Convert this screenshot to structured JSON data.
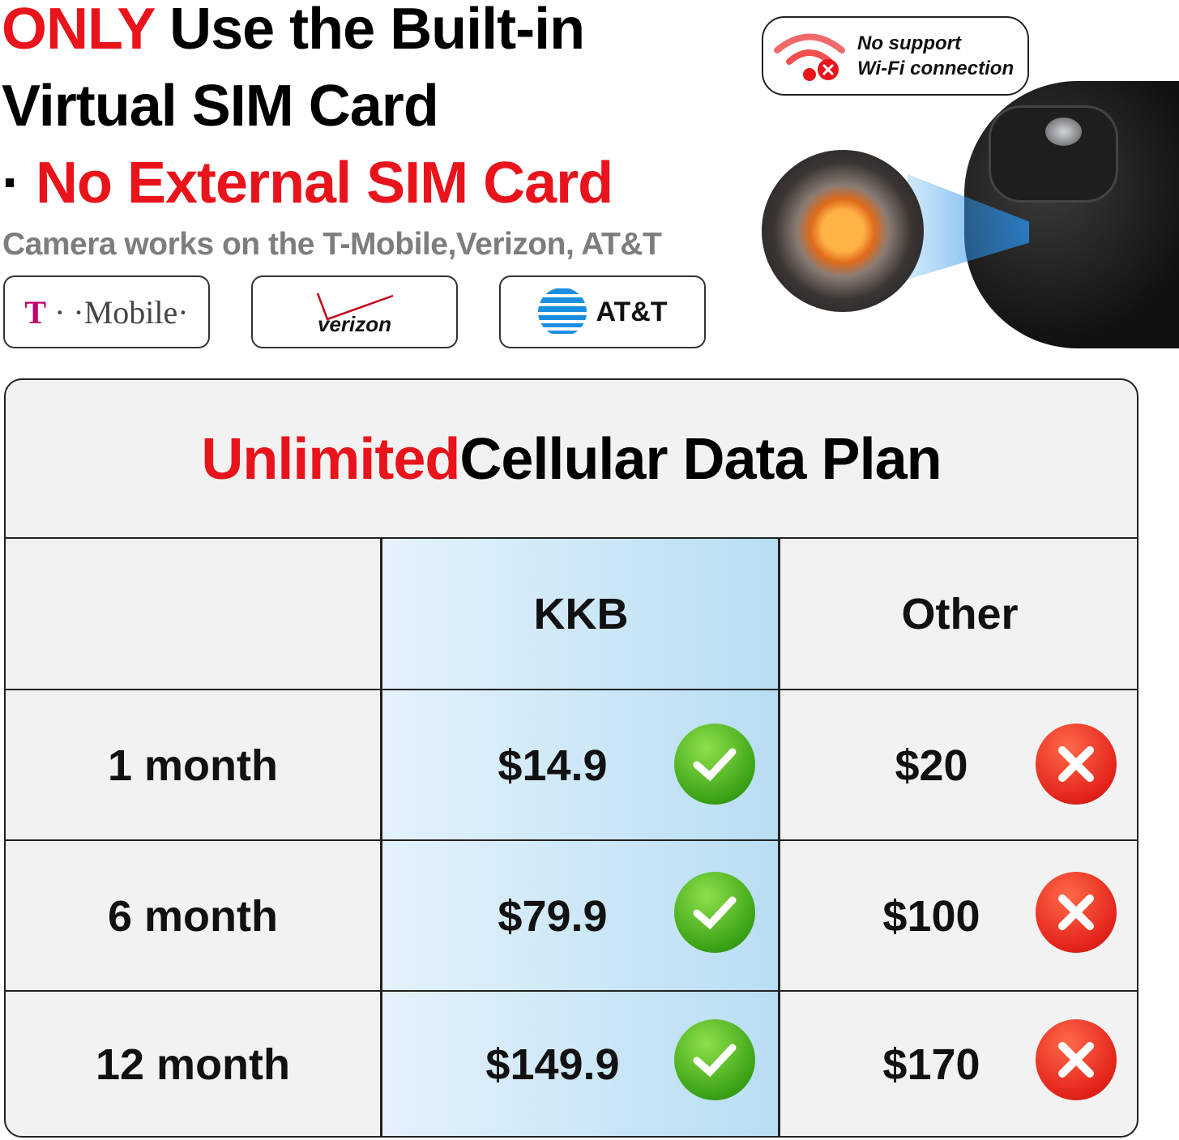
{
  "headline": {
    "line1_red": "ONLY",
    "line1_rest": " Use the Built-in",
    "line2": "Virtual SIM Card",
    "line3_dot": "·",
    "line3_red": " No External SIM Card"
  },
  "subtitle": "Camera works on the T-Mobile,Verizon, AT&T",
  "carriers": [
    {
      "name": "T-Mobile",
      "t": "T",
      "rest": " · ·Mobile·"
    },
    {
      "name": "verizon"
    },
    {
      "name": "AT&T"
    }
  ],
  "wifi_badge": {
    "icon": "wifi-off-icon",
    "line1": "No support",
    "line2": "Wi-Fi connection"
  },
  "table": {
    "title_red": "Unlimited",
    "title_rest": " Cellular Data Plan",
    "columns": [
      "",
      "KKB",
      "Other"
    ],
    "rows": [
      {
        "period": "1 month",
        "kkb": "$14.9",
        "other": "$20"
      },
      {
        "period": "6 month",
        "kkb": "$79.9",
        "other": "$100"
      },
      {
        "period": "12 month",
        "kkb": "$149.9",
        "other": "$170"
      }
    ]
  },
  "colors": {
    "accent_red": "#e8131b",
    "kkb_blue": "#b8def3",
    "check_green": "#3aa316",
    "cross_red": "#e3231a"
  }
}
